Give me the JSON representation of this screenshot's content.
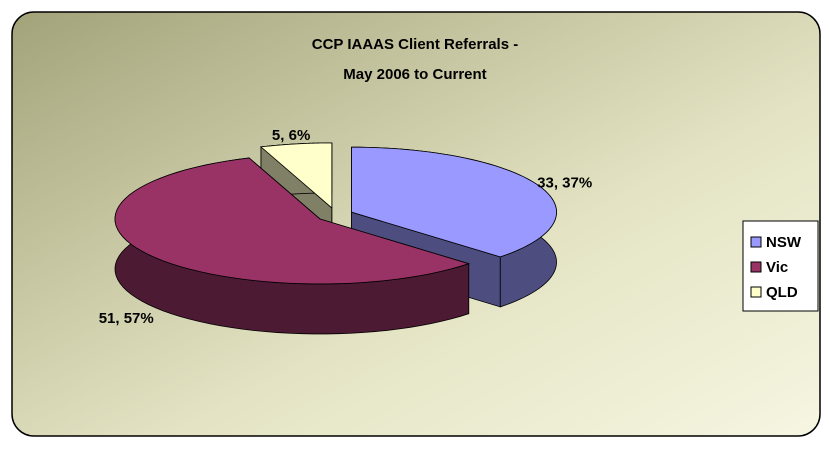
{
  "chart_data": {
    "type": "pie3d",
    "title": [
      "CCP IAAAS Client Referrals -",
      "May 2006 to Current"
    ],
    "categories": [
      "NSW",
      "Vic",
      "QLD"
    ],
    "values": [
      33,
      51,
      5
    ],
    "value_labels": [
      "33, 37%",
      "51, 57%",
      "5, 6%"
    ],
    "colors": [
      "#9999ff",
      "#993366",
      "#ffffcc"
    ],
    "legend": "right"
  }
}
